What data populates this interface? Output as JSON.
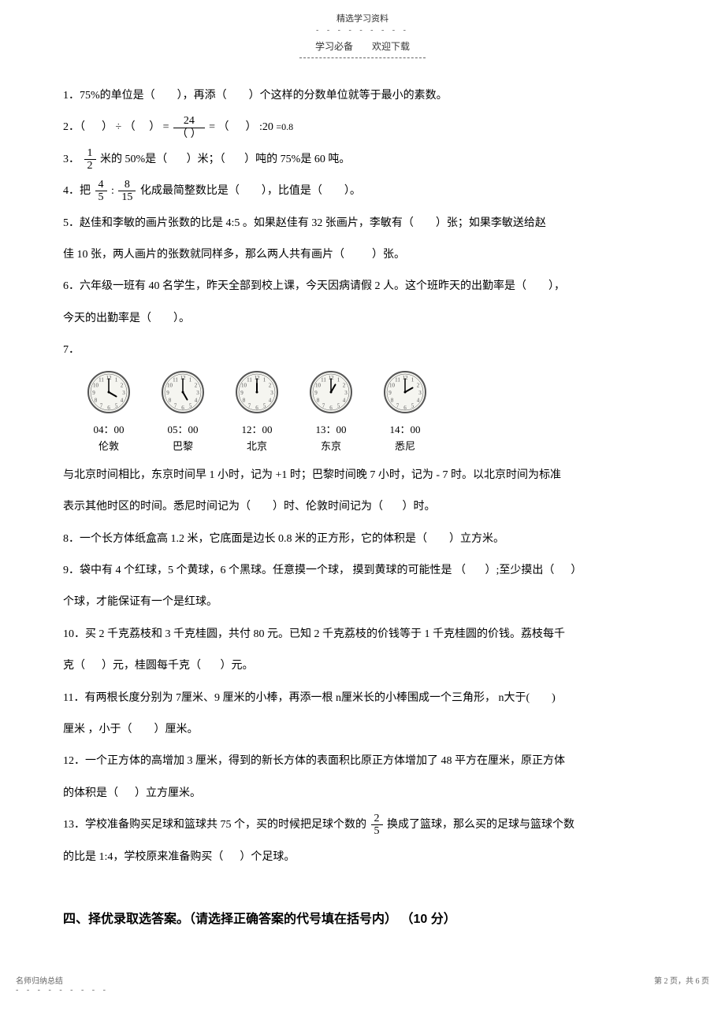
{
  "header": {
    "top": "精选学习资料",
    "sub_left": "学习必备",
    "sub_right": "欢迎下载"
  },
  "q1": {
    "prefix": "1．75%的单位是（",
    "mid1": "），再添（",
    "mid2": "）个这样的分数单位就等于最小的素数。"
  },
  "q2": {
    "a": "2．（",
    "b": "） ÷ （",
    "c": "）    =",
    "num": "24",
    "den": "（      ）",
    "d": "= （",
    "e": "） :20",
    "f": " =0.8"
  },
  "q3": {
    "a": "3．",
    "num": "1",
    "den": "2",
    "b": "米的 50%是（",
    "c": "）米；（",
    "d": "）吨的 75%是 60 吨。"
  },
  "q4": {
    "a": "4．把",
    "n1": "4",
    "d1": "5",
    "colon": ":",
    "n2": "8",
    "d2": "15",
    "b": "化成最简整数比是（",
    "c": "），比值是（",
    "d": "）。"
  },
  "q5": {
    "l1a": "5．赵佳和李敏的画片张数的比是    4:5 。如果赵佳有   32 张画片，李敏有（",
    "l1b": "）张；如果李敏送给赵",
    "l2a": "佳 10 张，两人画片的张数就同样多，那么两人共有画片（",
    "l2b": "）张。"
  },
  "q6": {
    "l1a": "6．六年级一班有   40 名学生，昨天全部到校上课，今天因病请假     2 人。这个班昨天的出勤率是（",
    "l1b": "），",
    "l2a": "今天的出勤率是（",
    "l2b": "）。"
  },
  "q7": {
    "label": "7．",
    "clocks": [
      {
        "time": "04：00",
        "city": "伦敦",
        "hour": 4,
        "min": 0
      },
      {
        "time": "05：00",
        "city": "巴黎",
        "hour": 5,
        "min": 0
      },
      {
        "time": "12：00",
        "city": "北京",
        "hour": 12,
        "min": 0
      },
      {
        "time": "13：00",
        "city": "东京",
        "hour": 1,
        "min": 0
      },
      {
        "time": "14：00",
        "city": "悉尼",
        "hour": 2,
        "min": 0
      }
    ],
    "l1": "与北京时间相比，东京时间早    1 小时，记为   +1 时；巴黎时间晚   7 小时，记为 -  7 时。以北京时间为标准",
    "l2a": "表示其他时区的时间。悉尼时间记为（",
    "l2b": "）时、伦敦时间记为（",
    "l2c": "）时。"
  },
  "q8": {
    "a": "8．一个长方体纸盒高    1.2 米，它底面是边长   0.8 米的正方形，它的体积是（",
    "b": "）立方米。"
  },
  "q9": {
    "l1a": "9．袋中有 4 个红球，5 个黄球，6 个黑球。任意摸一个球， 摸到黄球的可能性是 （",
    "l1b": "）;至少摸出（",
    "l1c": "）",
    "l2": "个球，才能保证有一个是红球。"
  },
  "q10": {
    "l1": "10．买 2 千克荔枝和   3 千克桂圆，共付   80 元。已知  2 千克荔枝的价钱等于   1 千克桂圆的价钱。荔枝每千",
    "l2a": "克（",
    "l2b": "）元，桂圆每千克（",
    "l2c": "）元。"
  },
  "q11": {
    "l1a": "11．有两根长度分别为   7厘米、9 厘米的小棒，再添一根  n厘米长的小棒围成一个三角形，  n大于(",
    "l1b": ")",
    "l2a": "厘米  ，小于（",
    "l2b": "）厘米。"
  },
  "q12": {
    "l1": "12．一个正方体的高增加     3 厘米，得到的新长方体的表面积比原正方体增加了      48 平方在厘米，原正方体",
    "l2a": "的体积是（",
    "l2b": "）立方厘米。"
  },
  "q13": {
    "l1a": "13．学校准备购买足球和篮球共     75 个，买的时候把足球个数的   ",
    "n": "2",
    "d": "5",
    "l1b": " 换成了篮球，那么买的足球与篮球个数",
    "l2a": "的比是 1:4，学校原来准备购买（",
    "l2b": "）个足球。"
  },
  "section4": "四、择优录取选答案。（请选择正确答案的代号填在括号内） （10 分）",
  "footer": {
    "left": "名师归纳总结",
    "right": "第 2 页，共 6 页"
  },
  "clock_style": {
    "face_fill": "#f5f5f0",
    "ring_stroke": "#555555",
    "number_color": "#555555",
    "hand_color": "#000000"
  }
}
